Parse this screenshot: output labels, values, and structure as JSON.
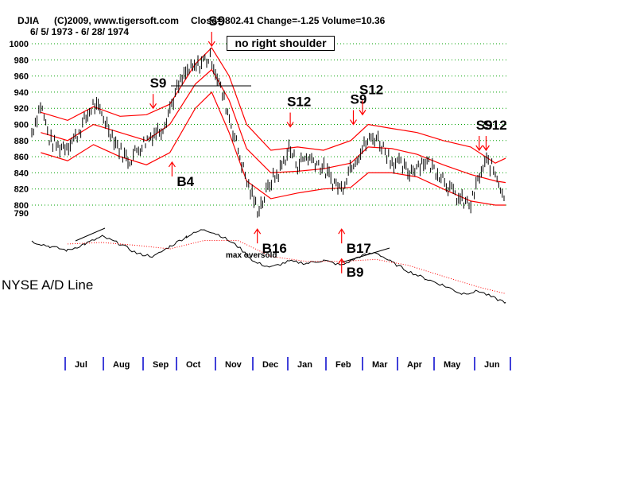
{
  "header": {
    "symbol": "DJIA",
    "copyright": "(C)2009, www.tigersoft.com",
    "close_label": "Close=",
    "close_value": "802.41",
    "change_label": "Change=",
    "change_value": "-1.25",
    "volume_label": "Volume=",
    "volume_value": "10.36",
    "date_range": "6/ 5/ 1973 - 6/ 28/ 1974"
  },
  "note": "no right shoulder",
  "ad_label": "NYSE A/D Line",
  "annotation_text": "max oversold",
  "colors": {
    "price": "#000000",
    "bands": "#ff0000",
    "grid": "#00a000",
    "month_tick": "#0000cc",
    "ad_line": "#000000",
    "ad_ma": "#ff0000"
  },
  "chart_data": {
    "type": "line",
    "ylim": [
      790,
      1000
    ],
    "yticks": [
      "1000",
      "980",
      "960",
      "940",
      "920",
      "900",
      "880",
      "860",
      "840",
      "820",
      "800",
      "790"
    ],
    "grid": true,
    "x_months": [
      "Jul",
      "Aug",
      "Sep",
      "Oct",
      "Nov",
      "Dec",
      "Jan",
      "Feb",
      "Mar",
      "Apr",
      "May",
      "Jun"
    ],
    "series": [
      {
        "name": "DJIA",
        "points": [
          [
            "1973-06-05",
            890
          ],
          [
            "1973-06-12",
            925
          ],
          [
            "1973-06-19",
            880
          ],
          [
            "1973-06-26",
            872
          ],
          [
            "1973-07-03",
            875
          ],
          [
            "1973-07-10",
            885
          ],
          [
            "1973-07-17",
            905
          ],
          [
            "1973-07-24",
            925
          ],
          [
            "1973-07-31",
            912
          ],
          [
            "1973-08-07",
            890
          ],
          [
            "1973-08-14",
            868
          ],
          [
            "1973-08-21",
            855
          ],
          [
            "1973-08-28",
            870
          ],
          [
            "1973-09-04",
            880
          ],
          [
            "1973-09-11",
            890
          ],
          [
            "1973-09-18",
            895
          ],
          [
            "1973-09-25",
            920
          ],
          [
            "1973-10-02",
            945
          ],
          [
            "1973-10-09",
            965
          ],
          [
            "1973-10-16",
            970
          ],
          [
            "1973-10-23",
            980
          ],
          [
            "1973-10-29",
            982
          ],
          [
            "1973-11-05",
            945
          ],
          [
            "1973-11-12",
            910
          ],
          [
            "1973-11-19",
            870
          ],
          [
            "1973-11-26",
            830
          ],
          [
            "1973-12-05",
            795
          ],
          [
            "1973-12-10",
            805
          ],
          [
            "1973-12-17",
            830
          ],
          [
            "1973-12-24",
            840
          ],
          [
            "1974-01-02",
            870
          ],
          [
            "1974-01-09",
            850
          ],
          [
            "1974-01-16",
            860
          ],
          [
            "1974-01-23",
            855
          ],
          [
            "1974-01-30",
            845
          ],
          [
            "1974-02-06",
            830
          ],
          [
            "1974-02-13",
            820
          ],
          [
            "1974-02-20",
            850
          ],
          [
            "1974-02-27",
            865
          ],
          [
            "1974-03-06",
            880
          ],
          [
            "1974-03-13",
            885
          ],
          [
            "1974-03-20",
            870
          ],
          [
            "1974-03-27",
            855
          ],
          [
            "1974-04-03",
            850
          ],
          [
            "1974-04-10",
            840
          ],
          [
            "1974-04-17",
            850
          ],
          [
            "1974-04-24",
            855
          ],
          [
            "1974-05-01",
            845
          ],
          [
            "1974-05-08",
            835
          ],
          [
            "1974-05-15",
            815
          ],
          [
            "1974-05-22",
            805
          ],
          [
            "1974-05-29",
            800
          ],
          [
            "1974-06-05",
            835
          ],
          [
            "1974-06-12",
            855
          ],
          [
            "1974-06-19",
            840
          ],
          [
            "1974-06-26",
            815
          ],
          [
            "1974-06-28",
            802
          ]
        ]
      },
      {
        "name": "upper band",
        "points": [
          [
            "1973-06-12",
            915
          ],
          [
            "1973-07-03",
            905
          ],
          [
            "1973-07-24",
            922
          ],
          [
            "1973-08-14",
            910
          ],
          [
            "1973-09-04",
            912
          ],
          [
            "1973-09-25",
            925
          ],
          [
            "1973-10-16",
            975
          ],
          [
            "1973-10-29",
            995
          ],
          [
            "1973-11-12",
            960
          ],
          [
            "1973-11-26",
            900
          ],
          [
            "1973-12-17",
            868
          ],
          [
            "1974-01-09",
            872
          ],
          [
            "1974-01-30",
            868
          ],
          [
            "1974-02-20",
            880
          ],
          [
            "1974-03-06",
            900
          ],
          [
            "1974-03-27",
            895
          ],
          [
            "1974-04-17",
            890
          ],
          [
            "1974-05-08",
            880
          ],
          [
            "1974-05-29",
            872
          ],
          [
            "1974-06-19",
            852
          ],
          [
            "1974-06-28",
            858
          ]
        ]
      },
      {
        "name": "middle band",
        "points": [
          [
            "1973-06-12",
            890
          ],
          [
            "1973-07-03",
            880
          ],
          [
            "1973-07-24",
            900
          ],
          [
            "1973-08-14",
            890
          ],
          [
            "1973-09-04",
            880
          ],
          [
            "1973-09-25",
            900
          ],
          [
            "1973-10-16",
            950
          ],
          [
            "1973-10-29",
            968
          ],
          [
            "1973-11-12",
            930
          ],
          [
            "1973-11-26",
            870
          ],
          [
            "1973-12-17",
            840
          ],
          [
            "1974-01-09",
            842
          ],
          [
            "1974-01-30",
            845
          ],
          [
            "1974-02-20",
            852
          ],
          [
            "1974-03-06",
            872
          ],
          [
            "1974-03-27",
            870
          ],
          [
            "1974-04-17",
            863
          ],
          [
            "1974-05-08",
            850
          ],
          [
            "1974-05-29",
            838
          ],
          [
            "1974-06-19",
            830
          ],
          [
            "1974-06-28",
            828
          ]
        ]
      },
      {
        "name": "lower band",
        "points": [
          [
            "1973-06-12",
            865
          ],
          [
            "1973-07-03",
            855
          ],
          [
            "1973-07-24",
            875
          ],
          [
            "1973-08-14",
            860
          ],
          [
            "1973-09-04",
            850
          ],
          [
            "1973-09-25",
            865
          ],
          [
            "1973-10-16",
            920
          ],
          [
            "1973-10-29",
            940
          ],
          [
            "1973-11-12",
            890
          ],
          [
            "1973-11-26",
            830
          ],
          [
            "1973-12-17",
            808
          ],
          [
            "1974-01-09",
            815
          ],
          [
            "1974-01-30",
            820
          ],
          [
            "1974-02-20",
            822
          ],
          [
            "1974-03-06",
            840
          ],
          [
            "1974-03-27",
            840
          ],
          [
            "1974-04-17",
            835
          ],
          [
            "1974-05-08",
            820
          ],
          [
            "1974-05-29",
            805
          ],
          [
            "1974-06-19",
            800
          ],
          [
            "1974-06-28",
            800
          ]
        ]
      },
      {
        "name": "NYSE A/D Line",
        "points": [
          [
            "1973-06-05",
            0.6
          ],
          [
            "1973-06-19",
            0.5
          ],
          [
            "1973-07-03",
            0.42
          ],
          [
            "1973-07-17",
            0.55
          ],
          [
            "1973-07-31",
            0.7
          ],
          [
            "1973-08-14",
            0.55
          ],
          [
            "1973-08-28",
            0.35
          ],
          [
            "1973-09-11",
            0.3
          ],
          [
            "1973-09-25",
            0.5
          ],
          [
            "1973-10-09",
            0.7
          ],
          [
            "1973-10-23",
            0.85
          ],
          [
            "1973-11-05",
            0.72
          ],
          [
            "1973-11-19",
            0.5
          ],
          [
            "1973-12-03",
            0.18
          ],
          [
            "1973-12-17",
            0.08
          ],
          [
            "1974-01-02",
            0.2
          ],
          [
            "1974-01-16",
            0.16
          ],
          [
            "1974-01-30",
            0.22
          ],
          [
            "1974-02-13",
            0.12
          ],
          [
            "1974-02-27",
            0.3
          ],
          [
            "1974-03-13",
            0.38
          ],
          [
            "1974-03-27",
            0.18
          ],
          [
            "1974-04-10",
            0.0
          ],
          [
            "1974-04-24",
            -0.15
          ],
          [
            "1974-05-08",
            -0.28
          ],
          [
            "1974-05-22",
            -0.45
          ],
          [
            "1974-06-05",
            -0.4
          ],
          [
            "1974-06-19",
            -0.55
          ],
          [
            "1974-06-28",
            -0.62
          ]
        ]
      },
      {
        "name": "A/D moving average",
        "points": [
          [
            "1973-07-03",
            0.55
          ],
          [
            "1973-07-31",
            0.58
          ],
          [
            "1973-08-28",
            0.52
          ],
          [
            "1973-09-25",
            0.45
          ],
          [
            "1973-10-23",
            0.62
          ],
          [
            "1973-11-19",
            0.62
          ],
          [
            "1973-12-17",
            0.3
          ],
          [
            "1974-01-16",
            0.2
          ],
          [
            "1974-02-13",
            0.2
          ],
          [
            "1974-03-13",
            0.24
          ],
          [
            "1974-04-10",
            0.12
          ],
          [
            "1974-05-08",
            -0.1
          ],
          [
            "1974-06-05",
            -0.32
          ],
          [
            "1974-06-28",
            -0.45
          ]
        ]
      }
    ],
    "signals": [
      {
        "label": "S9",
        "date": "1973-09-10",
        "value": 918,
        "kind": "sell"
      },
      {
        "label": "B4",
        "date": "1973-09-27",
        "value": 873,
        "kind": "buy"
      },
      {
        "label": "S9",
        "date": "1973-10-29",
        "value": 995,
        "kind": "sell"
      },
      {
        "label": "B16",
        "date": "1973-12-05",
        "value": 790,
        "kind": "buy"
      },
      {
        "label": "S12",
        "date": "1974-01-03",
        "value": 895,
        "kind": "sell"
      },
      {
        "label": "B17",
        "date": "1974-02-13",
        "value": 790,
        "kind": "buy"
      },
      {
        "label": "B9",
        "date": "1974-02-13",
        "value": 0.12,
        "kind": "buy"
      },
      {
        "label": "S9",
        "date": "1974-02-22",
        "value": 898,
        "kind": "sell"
      },
      {
        "label": "S12",
        "date": "1974-03-01",
        "value": 910,
        "kind": "sell"
      },
      {
        "label": "S9",
        "date": "1974-06-05",
        "value": 866,
        "kind": "sell"
      },
      {
        "label": "S12",
        "date": "1974-06-11",
        "value": 866,
        "kind": "sell"
      }
    ]
  }
}
